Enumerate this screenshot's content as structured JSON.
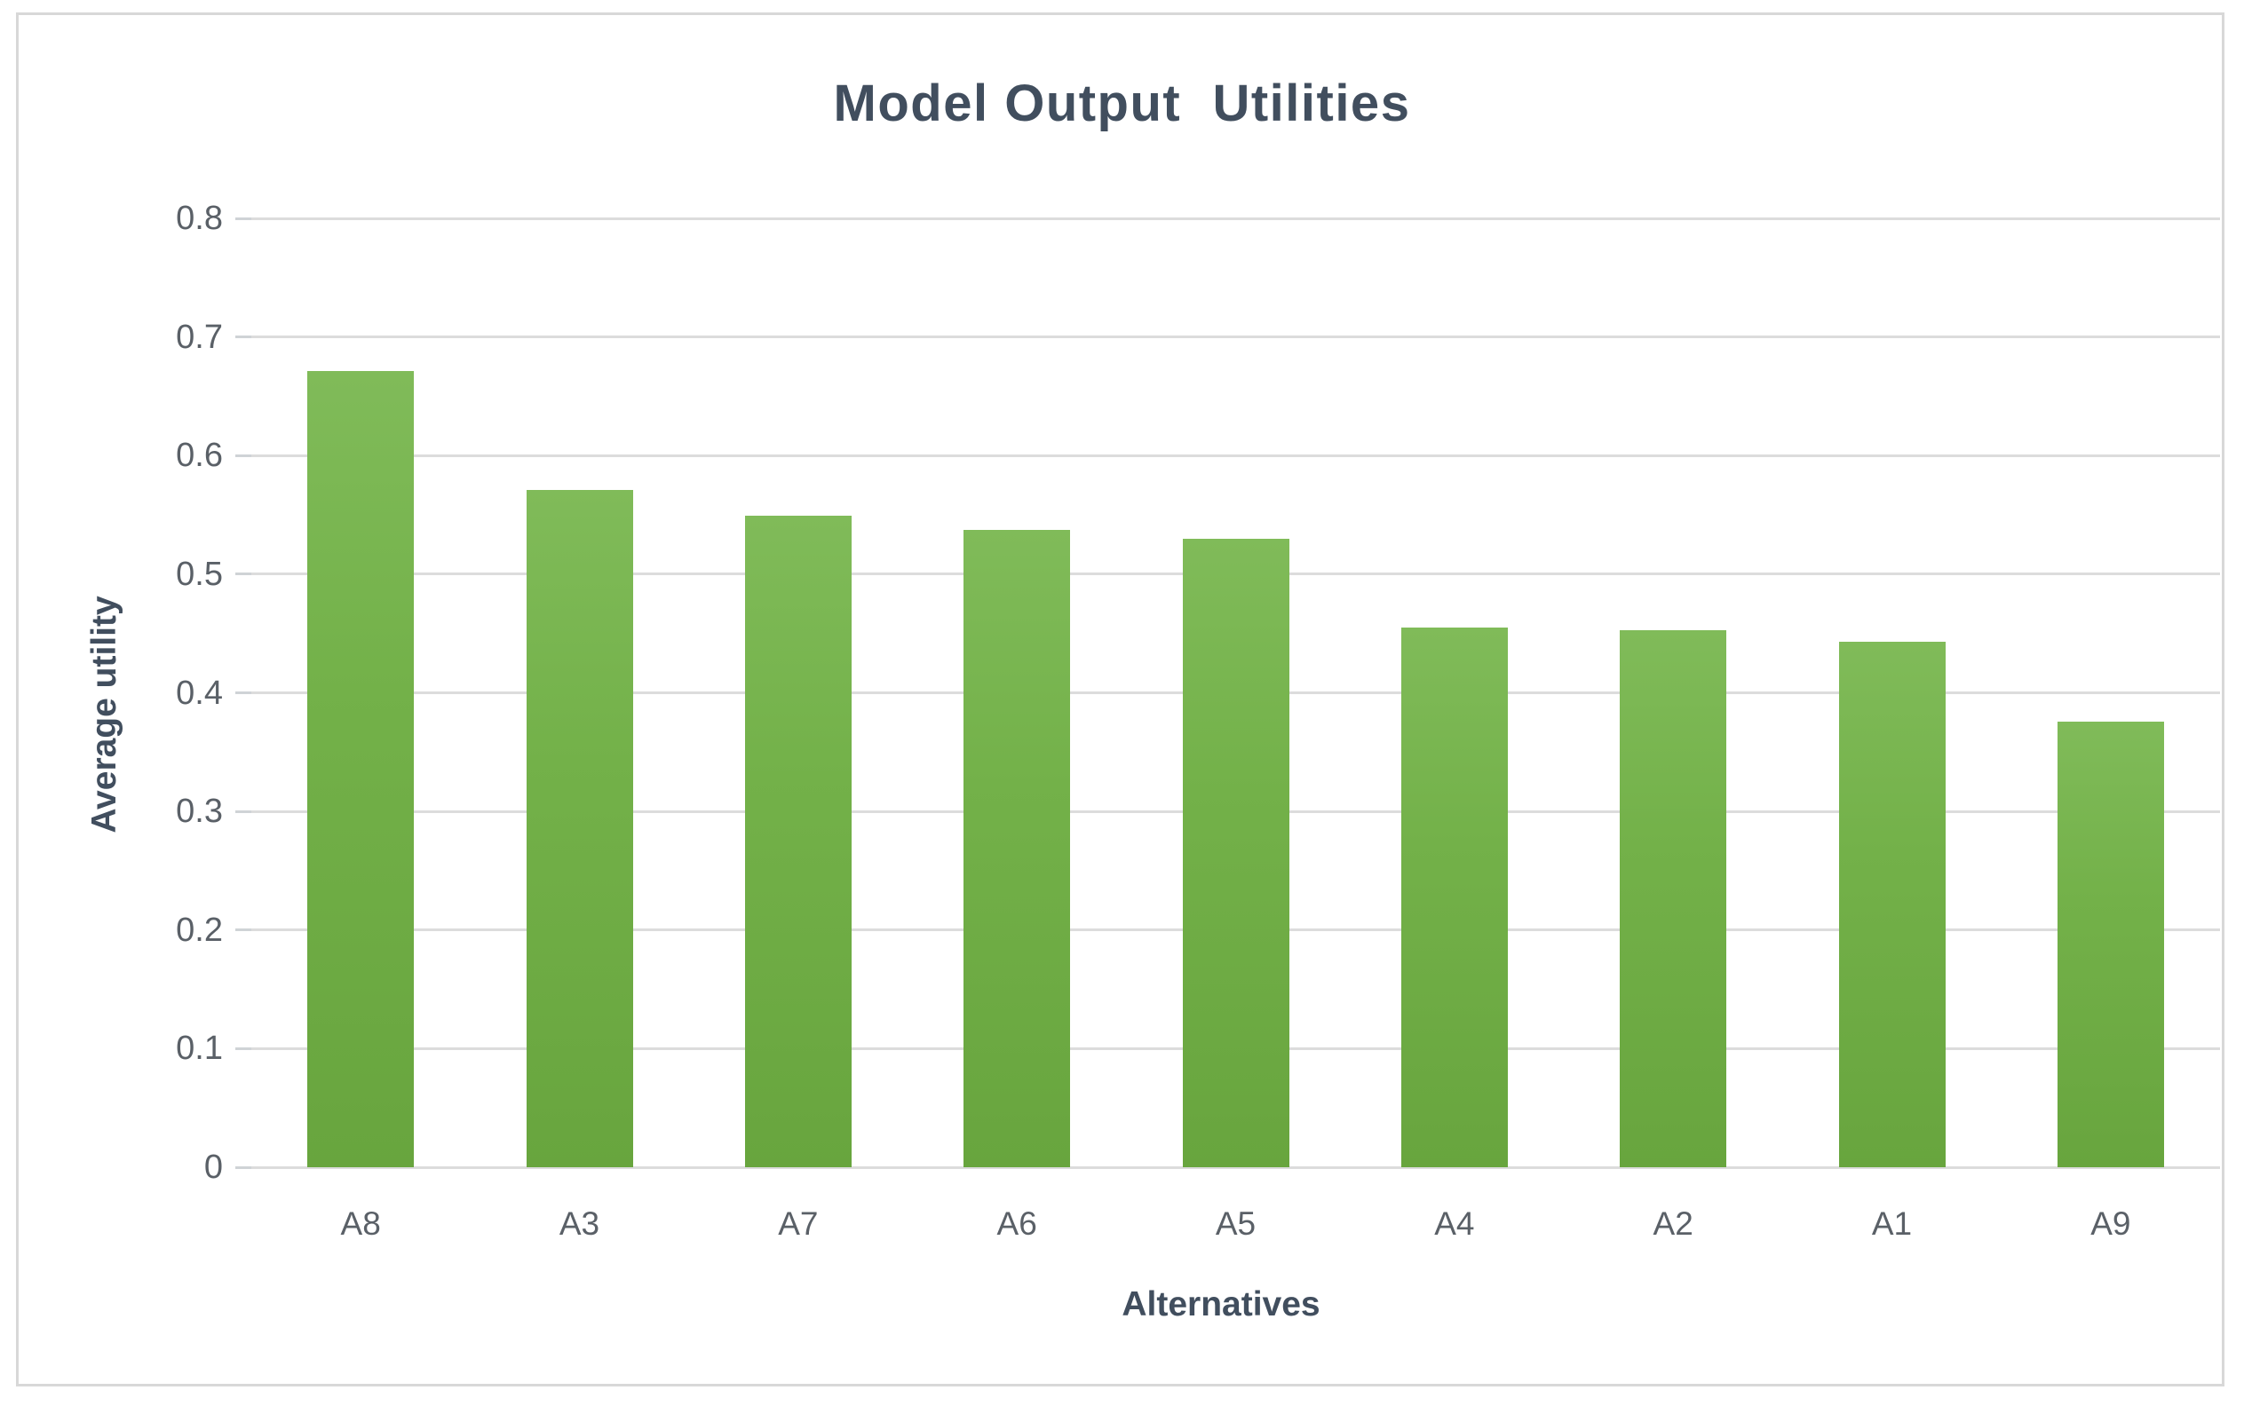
{
  "chart_data": {
    "type": "bar",
    "title": "Model Output  Utilities",
    "xlabel": "Alternatives",
    "ylabel": "Average utility",
    "categories": [
      "A8",
      "A3",
      "A7",
      "A6",
      "A5",
      "A4",
      "A2",
      "A1",
      "A9"
    ],
    "values": [
      0.671,
      0.571,
      0.549,
      0.537,
      0.53,
      0.455,
      0.453,
      0.443,
      0.376
    ],
    "ylim": [
      0,
      0.8
    ],
    "yticks": [
      0,
      0.1,
      0.2,
      0.3,
      0.4,
      0.5,
      0.6,
      0.7,
      0.8
    ],
    "ytick_labels": [
      "0",
      "0.1",
      "0.2",
      "0.3",
      "0.4",
      "0.5",
      "0.6",
      "0.7",
      "0.8"
    ],
    "grid": true,
    "legend": false
  },
  "colors": {
    "bar_top": "#80bb59",
    "bar_mid": "#73b149",
    "bar_bottom": "#68a53e",
    "gridline": "#dcdcdc",
    "tick_mark": "#cfd3d6",
    "tick_label": "#5a6067",
    "title": "#414e5e",
    "axis_title": "#414e5e",
    "frame_border": "#d8d8d8",
    "background": "#ffffff"
  }
}
